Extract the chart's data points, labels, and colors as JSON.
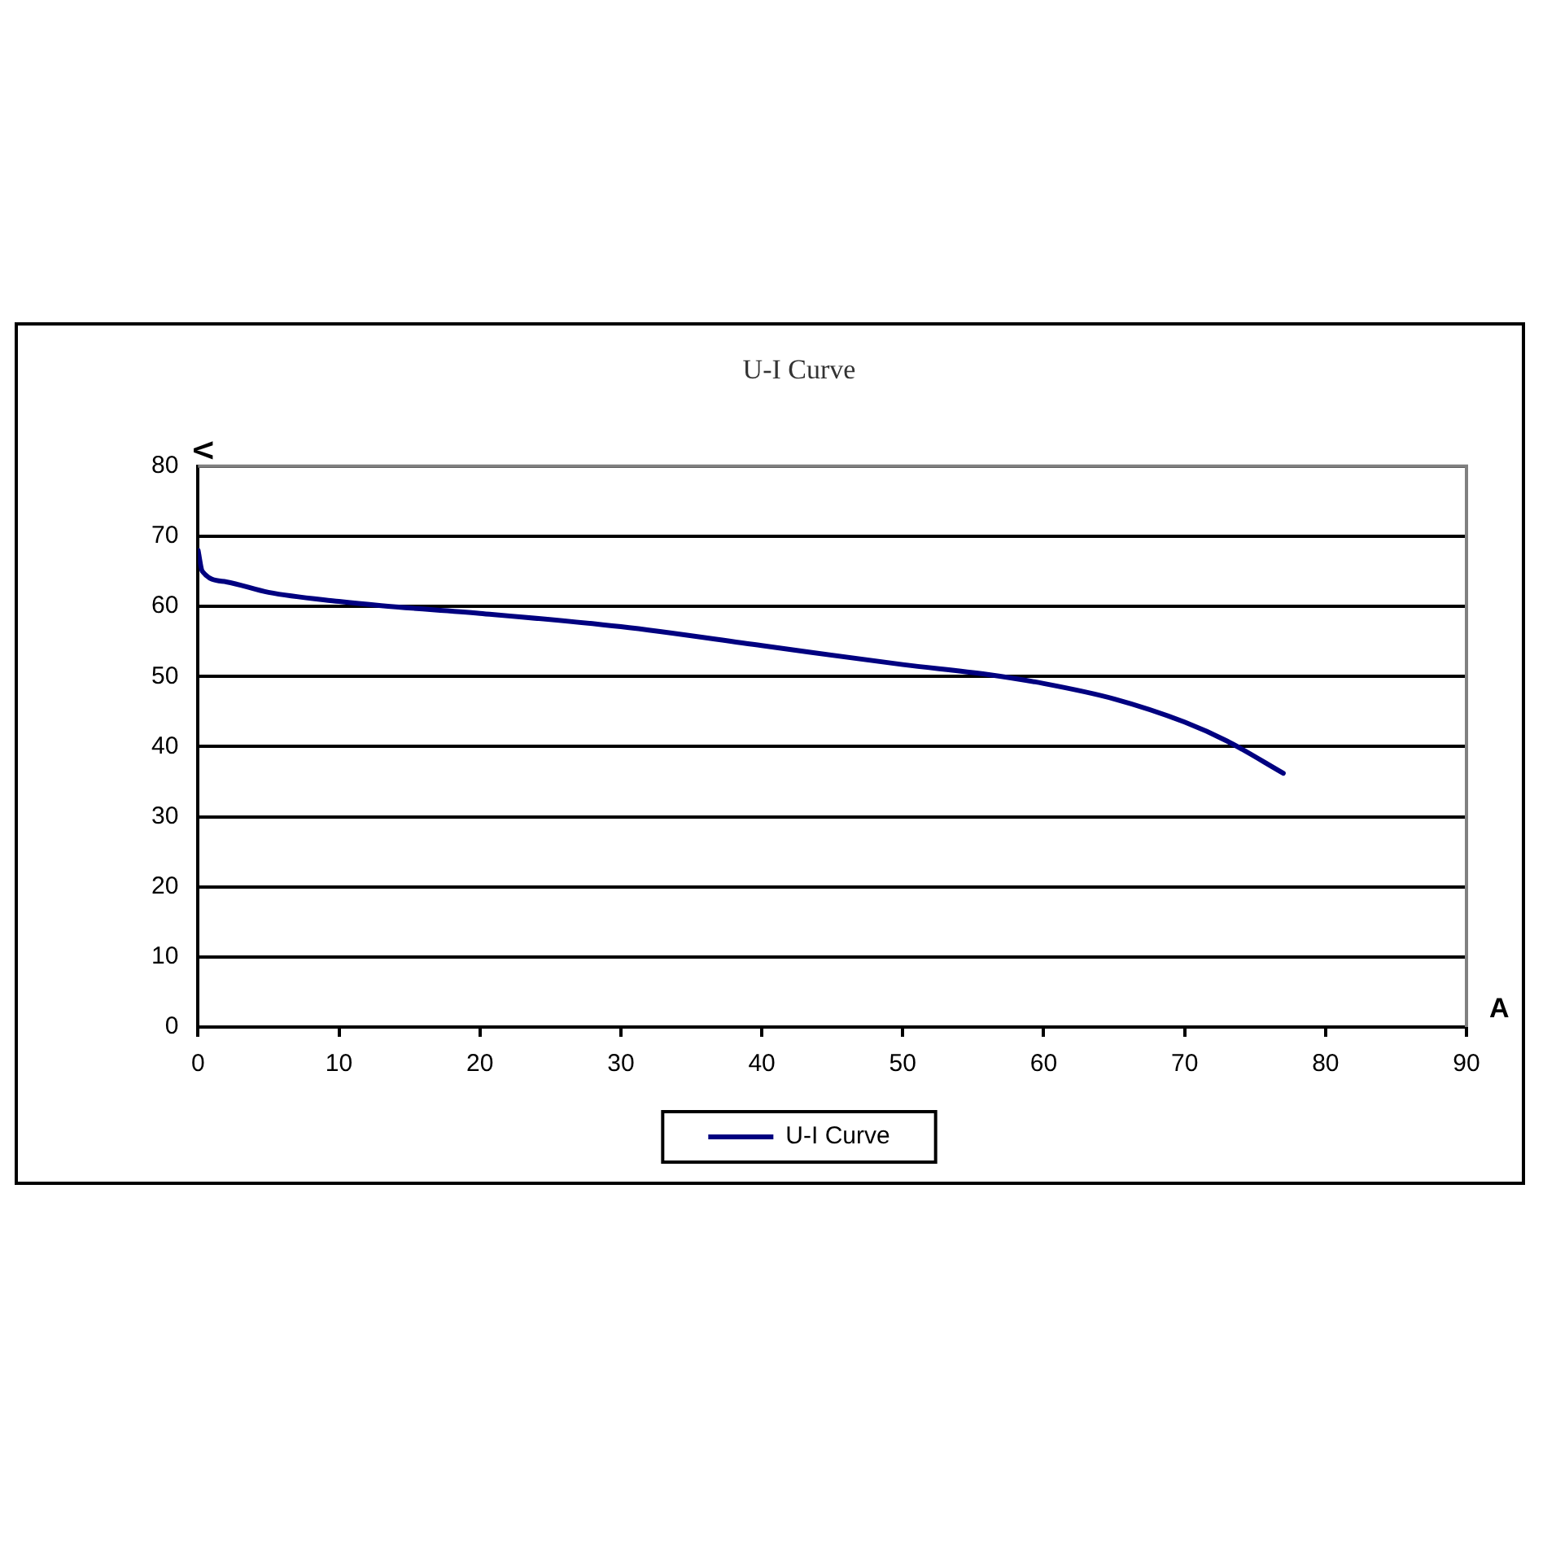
{
  "chart_data": {
    "type": "line",
    "title": "U-I Curve",
    "xlabel": "A",
    "ylabel": "V",
    "series": [
      {
        "name": "U-I Curve",
        "color": "#000080",
        "x": [
          0,
          0.3,
          2,
          5,
          10,
          13,
          20,
          30,
          40,
          50,
          56,
          60,
          65,
          70,
          73,
          77
        ],
        "values": [
          68,
          65,
          63.5,
          62,
          60.7,
          60.1,
          59,
          57.1,
          54.4,
          51.7,
          50.3,
          49,
          46.8,
          43.5,
          40.8,
          36.2
        ]
      }
    ],
    "xlim": [
      0,
      90
    ],
    "xticks": [
      0,
      10,
      20,
      30,
      40,
      50,
      60,
      70,
      80,
      90
    ],
    "ylim": [
      0,
      80
    ],
    "yticks": [
      0,
      10,
      20,
      30,
      40,
      50,
      60,
      70,
      80
    ],
    "grid": "y",
    "legend": "bottom",
    "marker": "none",
    "line_style": "solid"
  }
}
